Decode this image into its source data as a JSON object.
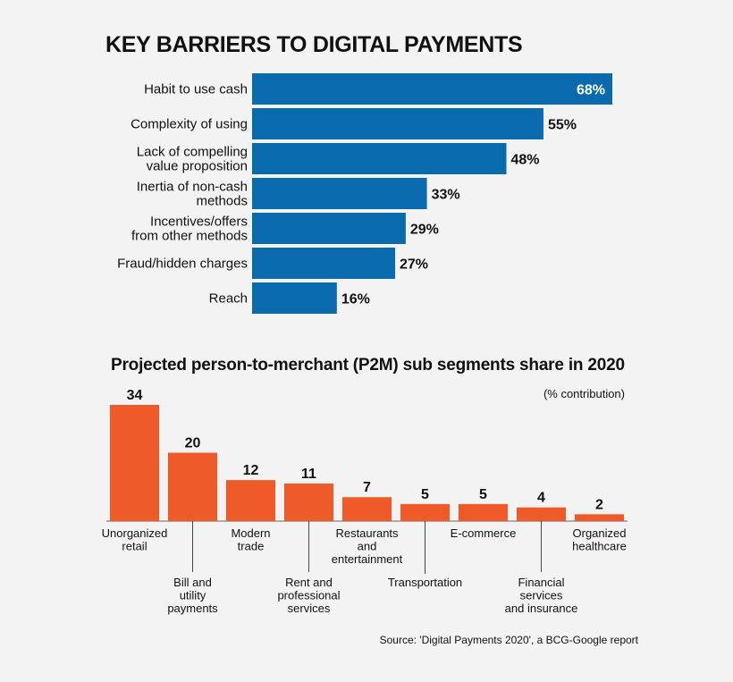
{
  "title": "KEY BARRIERS TO DIGITAL PAYMENTS",
  "subtitle": "Projected person-to-merchant (P2M) sub segments share in 2020",
  "unit_note": "(% contribution)",
  "source": "Source: 'Digital Payments 2020', a BCG-Google report",
  "colors": {
    "blue": "#0a6aae",
    "orange": "#f05a28",
    "text": "#111111"
  },
  "chart_data": [
    {
      "type": "bar",
      "orientation": "horizontal",
      "title": "KEY BARRIERS TO DIGITAL PAYMENTS",
      "categories": [
        "Habit to use cash",
        "Complexity of using",
        "Lack of compelling value proposition",
        "Inertia of non-cash methods",
        "Incentives/offers from other methods",
        "Fraud/hidden charges",
        "Reach"
      ],
      "category_lines": [
        [
          "Habit to use cash"
        ],
        [
          "Complexity of using"
        ],
        [
          "Lack of compelling",
          "value proposition"
        ],
        [
          "Inertia of non-cash",
          "methods"
        ],
        [
          "Incentives/offers",
          "from other methods"
        ],
        [
          "Fraud/hidden charges"
        ],
        [
          "Reach"
        ]
      ],
      "values": [
        68,
        55,
        48,
        33,
        29,
        27,
        16
      ],
      "labels": [
        "68%",
        "55%",
        "48%",
        "33%",
        "29%",
        "27%",
        "16%"
      ],
      "grid": false,
      "legend": "none"
    },
    {
      "type": "bar",
      "orientation": "vertical",
      "title": "Projected person-to-merchant (P2M) sub segments share in 2020",
      "ylabel": "(% contribution)",
      "categories": [
        "Unorganized retail",
        "Bill and utility payments",
        "Modern trade",
        "Rent and professional services",
        "Restaurants and entertainment",
        "Transportation",
        "E-commerce",
        "Financial services and insurance",
        "Organized healthcare"
      ],
      "category_lines": [
        [
          "Unorganized",
          "retail"
        ],
        [
          "Bill and",
          "utility",
          "payments"
        ],
        [
          "Modern",
          "trade"
        ],
        [
          "Rent and",
          "professional",
          "services"
        ],
        [
          "Restaurants",
          "and",
          "entertainment"
        ],
        [
          "Transportation"
        ],
        [
          "E-commerce"
        ],
        [
          "Financial",
          "services",
          "and insurance"
        ],
        [
          "Organized",
          "healthcare"
        ]
      ],
      "values": [
        34,
        20,
        12,
        11,
        7,
        5,
        5,
        4,
        2
      ],
      "labels": [
        "34",
        "20",
        "12",
        "11",
        "7",
        "5",
        "5",
        "4",
        "2"
      ],
      "grid": false,
      "legend": "none"
    }
  ]
}
